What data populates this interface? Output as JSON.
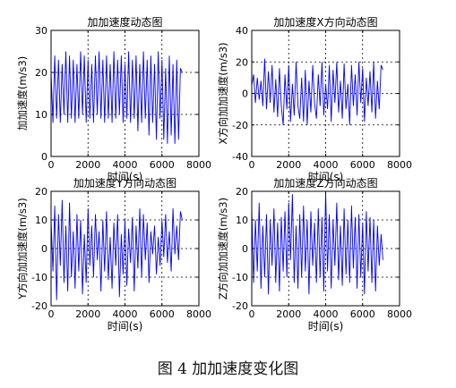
{
  "caption": "图 4  加加速度变化图",
  "colors": {
    "series": "#0000ff",
    "axes": "#000000",
    "grid": "#000000"
  },
  "chart_data": [
    {
      "type": "line",
      "title": "加加速度动态图",
      "xlabel": "时间(s)",
      "ylabel": "加加速度(m/s3)",
      "xlim": [
        0,
        8000
      ],
      "ylim": [
        0,
        30
      ],
      "xticks": [
        0,
        2000,
        4000,
        6000,
        8000
      ],
      "yticks": [
        0,
        10,
        20,
        30
      ],
      "grid": true,
      "series": [
        {
          "x": [
            0,
            100,
            200,
            300,
            400,
            500,
            600,
            700,
            800,
            900,
            1000,
            1100,
            1200,
            1300,
            1400,
            1500,
            1600,
            1700,
            1800,
            1900,
            2000,
            2100,
            2200,
            2300,
            2400,
            2500,
            2600,
            2700,
            2800,
            2900,
            3000,
            3100,
            3200,
            3300,
            3400,
            3500,
            3600,
            3700,
            3800,
            3900,
            4000,
            4100,
            4200,
            4300,
            4400,
            4500,
            4600,
            4700,
            4800,
            4900,
            5000,
            5100,
            5200,
            5300,
            5400,
            5500,
            5600,
            5700,
            5800,
            5900,
            6000,
            6100,
            6200,
            6300,
            6400,
            6500,
            6600,
            6700,
            6800,
            6900,
            7000,
            7100
          ],
          "y": [
            20,
            8,
            24,
            9,
            23,
            8,
            22,
            10,
            25,
            8,
            24,
            9,
            23,
            8,
            22,
            9,
            25,
            10,
            24,
            8,
            23,
            9,
            22,
            8,
            24,
            10,
            25,
            9,
            23,
            8,
            24,
            9,
            22,
            8,
            25,
            9,
            23,
            10,
            24,
            8,
            22,
            9,
            25,
            8,
            23,
            9,
            24,
            6,
            22,
            8,
            25,
            9,
            23,
            5,
            24,
            8,
            22,
            4,
            25,
            9,
            23,
            4,
            21,
            3,
            24,
            5,
            22,
            3,
            23,
            4,
            21,
            20
          ]
        }
      ]
    },
    {
      "type": "line",
      "title": "加加速度X方向动态图",
      "xlabel": "时间(s)",
      "ylabel": "X方向加加速度(m/s3)",
      "xlim": [
        0,
        8000
      ],
      "ylim": [
        -40,
        40
      ],
      "xticks": [
        0,
        2000,
        4000,
        6000,
        8000
      ],
      "yticks": [
        -40,
        -20,
        0,
        20,
        40
      ],
      "grid": true,
      "series": [
        {
          "x": [
            0,
            100,
            200,
            300,
            400,
            500,
            600,
            700,
            800,
            900,
            1000,
            1100,
            1200,
            1300,
            1400,
            1500,
            1600,
            1700,
            1800,
            1900,
            2000,
            2100,
            2200,
            2300,
            2400,
            2500,
            2600,
            2700,
            2800,
            2900,
            3000,
            3100,
            3200,
            3300,
            3400,
            3500,
            3600,
            3700,
            3800,
            3900,
            4000,
            4100,
            4200,
            4300,
            4400,
            4500,
            4600,
            4700,
            4800,
            4900,
            5000,
            5100,
            5200,
            5300,
            5400,
            5500,
            5600,
            5700,
            5800,
            5900,
            6000,
            6100,
            6200,
            6300,
            6400,
            6500,
            6600,
            6700,
            6800,
            6900,
            7000,
            7100
          ],
          "y": [
            5,
            12,
            -6,
            10,
            -4,
            8,
            -8,
            22,
            -10,
            14,
            -6,
            18,
            -12,
            9,
            -15,
            16,
            -8,
            -20,
            12,
            -10,
            18,
            -18,
            6,
            -14,
            20,
            -8,
            -16,
            10,
            -18,
            15,
            -20,
            8,
            -12,
            18,
            -6,
            -16,
            12,
            -8,
            20,
            -14,
            6,
            -10,
            18,
            -18,
            15,
            -6,
            20,
            -12,
            8,
            -16,
            19,
            -10,
            6,
            -20,
            18,
            -8,
            12,
            -14,
            20,
            -6,
            16,
            -18,
            10,
            -8,
            14,
            -12,
            20,
            -16,
            8,
            -10,
            18,
            15
          ]
        }
      ]
    },
    {
      "type": "line",
      "title": "加加速度Y方向动态图",
      "xlabel": "时间(s)",
      "ylabel": "Y方向加加速度(m/s3)",
      "xlim": [
        0,
        8000
      ],
      "ylim": [
        -20,
        20
      ],
      "xticks": [
        0,
        2000,
        4000,
        6000,
        8000
      ],
      "yticks": [
        -20,
        -10,
        0,
        10,
        20
      ],
      "grid": true,
      "series": [
        {
          "x": [
            0,
            100,
            200,
            300,
            400,
            500,
            600,
            700,
            800,
            900,
            1000,
            1100,
            1200,
            1300,
            1400,
            1500,
            1600,
            1700,
            1800,
            1900,
            2000,
            2100,
            2200,
            2300,
            2400,
            2500,
            2600,
            2700,
            2800,
            2900,
            3000,
            3100,
            3200,
            3300,
            3400,
            3500,
            3600,
            3700,
            3800,
            3900,
            4000,
            4100,
            4200,
            4300,
            4400,
            4500,
            4600,
            4700,
            4800,
            4900,
            5000,
            5100,
            5200,
            5300,
            5400,
            5500,
            5600,
            5700,
            5800,
            5900,
            6000,
            6100,
            6200,
            6300,
            6400,
            6500,
            6600,
            6700,
            6800,
            6900,
            7000,
            7100
          ],
          "y": [
            10,
            -8,
            15,
            -18,
            12,
            -6,
            17,
            -12,
            8,
            -15,
            16,
            -10,
            6,
            -14,
            12,
            -8,
            10,
            -16,
            5,
            -12,
            14,
            -6,
            8,
            -10,
            12,
            -4,
            6,
            -15,
            10,
            -8,
            13,
            -11,
            4,
            -14,
            9,
            -6,
            12,
            -17,
            5,
            -9,
            10,
            -13,
            7,
            -5,
            11,
            -15,
            8,
            -7,
            14,
            -10,
            12,
            -4,
            9,
            -12,
            6,
            -2,
            8,
            -9,
            4,
            -6,
            10,
            -3,
            12,
            -5,
            6,
            -8,
            14,
            -2,
            8,
            -4,
            13,
            10
          ]
        }
      ]
    },
    {
      "type": "line",
      "title": "加加速度Z方向动态图",
      "xlabel": "时间(s)",
      "ylabel": "Z方向加加速度(m/s3)",
      "xlim": [
        0,
        8000
      ],
      "ylim": [
        -20,
        20
      ],
      "xticks": [
        0,
        2000,
        4000,
        6000,
        8000
      ],
      "yticks": [
        -20,
        -10,
        0,
        10,
        20
      ],
      "grid": true,
      "series": [
        {
          "x": [
            0,
            100,
            200,
            300,
            400,
            500,
            600,
            700,
            800,
            900,
            1000,
            1100,
            1200,
            1300,
            1400,
            1500,
            1600,
            1700,
            1800,
            1900,
            2000,
            2100,
            2200,
            2300,
            2400,
            2500,
            2600,
            2700,
            2800,
            2900,
            3000,
            3100,
            3200,
            3300,
            3400,
            3500,
            3600,
            3700,
            3800,
            3900,
            4000,
            4100,
            4200,
            4300,
            4400,
            4500,
            4600,
            4700,
            4800,
            4900,
            5000,
            5100,
            5200,
            5300,
            5400,
            5500,
            5600,
            5700,
            5800,
            5900,
            6000,
            6100,
            6200,
            6300,
            6400,
            6500,
            6600,
            6700,
            6800,
            6900,
            7000,
            7100
          ],
          "y": [
            14,
            -12,
            10,
            -8,
            16,
            -14,
            8,
            -10,
            12,
            -16,
            10,
            -6,
            14,
            -12,
            9,
            -15,
            11,
            -8,
            13,
            -10,
            16,
            -4,
            19,
            -12,
            8,
            -14,
            12,
            -10,
            15,
            -8,
            10,
            -16,
            13,
            -6,
            9,
            -12,
            14,
            -10,
            11,
            -15,
            20,
            -8,
            12,
            -14,
            10,
            -6,
            16,
            -11,
            8,
            -13,
            14,
            -9,
            10,
            -12,
            15,
            -7,
            11,
            -14,
            12,
            -10,
            9,
            -16,
            13,
            -8,
            11,
            -12,
            10,
            -15,
            8,
            -6,
            5,
            -4
          ]
        }
      ]
    }
  ]
}
